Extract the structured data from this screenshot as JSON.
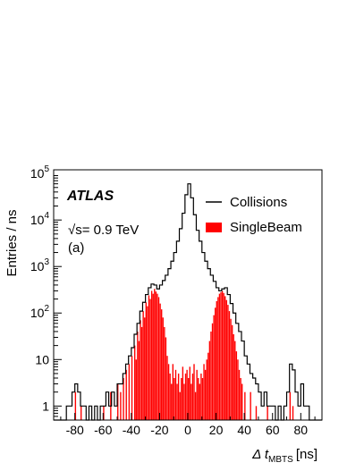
{
  "chart_data": {
    "type": "histogram",
    "title": "",
    "xlabel": "Δ t",
    "xlabel_subscript": "MBTS",
    "xlabel_unit": "[ns]",
    "ylabel": "Entries / ns",
    "xlim": [
      -95,
      95
    ],
    "ylim": [
      0.5,
      120000
    ],
    "yscale": "log",
    "grid": false,
    "legend_position": "top-right",
    "x_tick_labels": [
      "-80",
      "-60",
      "-40",
      "-20",
      "0",
      "20",
      "40",
      "60",
      "80"
    ],
    "y_tick_labels": [
      {
        "base": "1",
        "exp": ""
      },
      {
        "base": "10",
        "exp": ""
      },
      {
        "base": "10",
        "exp": "2"
      },
      {
        "base": "10",
        "exp": "3"
      },
      {
        "base": "10",
        "exp": "4"
      },
      {
        "base": "10",
        "exp": "5"
      }
    ],
    "experiment_label": "ATLAS",
    "energy_label": "√s= 0.9 TeV",
    "panel_label": "(a)",
    "series": [
      {
        "name": "Collisions",
        "style": "step-line",
        "color": "#000000",
        "points": [
          [
            -95,
            0
          ],
          [
            -92,
            0
          ],
          [
            -90,
            0
          ],
          [
            -88,
            0
          ],
          [
            -86,
            1
          ],
          [
            -84,
            1
          ],
          [
            -82,
            2
          ],
          [
            -80,
            3
          ],
          [
            -78,
            2
          ],
          [
            -76,
            1
          ],
          [
            -74,
            1
          ],
          [
            -72,
            0
          ],
          [
            -70,
            1
          ],
          [
            -68,
            0
          ],
          [
            -66,
            1
          ],
          [
            -64,
            0
          ],
          [
            -62,
            1
          ],
          [
            -60,
            1
          ],
          [
            -58,
            2
          ],
          [
            -56,
            1
          ],
          [
            -54,
            2
          ],
          [
            -52,
            1
          ],
          [
            -50,
            3
          ],
          [
            -48,
            3
          ],
          [
            -46,
            5
          ],
          [
            -44,
            8
          ],
          [
            -42,
            12
          ],
          [
            -40,
            18
          ],
          [
            -38,
            35
          ],
          [
            -36,
            60
          ],
          [
            -34,
            110
          ],
          [
            -32,
            170
          ],
          [
            -30,
            250
          ],
          [
            -28,
            350
          ],
          [
            -26,
            420
          ],
          [
            -24,
            400
          ],
          [
            -22,
            330
          ],
          [
            -20,
            400
          ],
          [
            -18,
            500
          ],
          [
            -16,
            650
          ],
          [
            -14,
            900
          ],
          [
            -12,
            1300
          ],
          [
            -10,
            2000
          ],
          [
            -8,
            3500
          ],
          [
            -6,
            6500
          ],
          [
            -4,
            14000
          ],
          [
            -2,
            35000
          ],
          [
            0,
            60000
          ],
          [
            2,
            30000
          ],
          [
            4,
            13000
          ],
          [
            6,
            6000
          ],
          [
            8,
            3500
          ],
          [
            10,
            2000
          ],
          [
            12,
            1300
          ],
          [
            14,
            900
          ],
          [
            16,
            650
          ],
          [
            18,
            480
          ],
          [
            20,
            350
          ],
          [
            22,
            300
          ],
          [
            24,
            330
          ],
          [
            26,
            350
          ],
          [
            28,
            250
          ],
          [
            30,
            160
          ],
          [
            32,
            100
          ],
          [
            34,
            60
          ],
          [
            36,
            40
          ],
          [
            38,
            25
          ],
          [
            40,
            12
          ],
          [
            42,
            8
          ],
          [
            44,
            5
          ],
          [
            46,
            4
          ],
          [
            48,
            3
          ],
          [
            50,
            2
          ],
          [
            52,
            1
          ],
          [
            54,
            2
          ],
          [
            56,
            1
          ],
          [
            58,
            1
          ],
          [
            60,
            1
          ],
          [
            62,
            0
          ],
          [
            64,
            1
          ],
          [
            66,
            0
          ],
          [
            68,
            1
          ],
          [
            70,
            2
          ],
          [
            72,
            8
          ],
          [
            74,
            6
          ],
          [
            76,
            2
          ],
          [
            78,
            1
          ],
          [
            80,
            3
          ],
          [
            82,
            1
          ],
          [
            84,
            1
          ],
          [
            86,
            0
          ],
          [
            88,
            0
          ],
          [
            90,
            0
          ],
          [
            92,
            0
          ],
          [
            94,
            0
          ]
        ]
      },
      {
        "name": "SingleBeam",
        "style": "filled-histogram",
        "color": "#ff0000",
        "points": [
          [
            -80,
            2
          ],
          [
            -76,
            1
          ],
          [
            -60,
            1
          ],
          [
            -55,
            2
          ],
          [
            -50,
            3
          ],
          [
            -48,
            2
          ],
          [
            -46,
            4
          ],
          [
            -44,
            6
          ],
          [
            -42,
            8
          ],
          [
            -40,
            12
          ],
          [
            -38,
            20
          ],
          [
            -37,
            10
          ],
          [
            -36,
            40
          ],
          [
            -35,
            25
          ],
          [
            -34,
            70
          ],
          [
            -33,
            50
          ],
          [
            -32,
            110
          ],
          [
            -31,
            80
          ],
          [
            -30,
            170
          ],
          [
            -29,
            140
          ],
          [
            -28,
            240
          ],
          [
            -27,
            200
          ],
          [
            -26,
            300
          ],
          [
            -25,
            260
          ],
          [
            -24,
            330
          ],
          [
            -23,
            290
          ],
          [
            -22,
            260
          ],
          [
            -21,
            220
          ],
          [
            -20,
            160
          ],
          [
            -19,
            120
          ],
          [
            -18,
            80
          ],
          [
            -17,
            50
          ],
          [
            -16,
            30
          ],
          [
            -15,
            12
          ],
          [
            -14,
            8
          ],
          [
            -13,
            5
          ],
          [
            -12,
            3
          ],
          [
            -11,
            8
          ],
          [
            -10,
            4
          ],
          [
            -9,
            6
          ],
          [
            -8,
            3
          ],
          [
            -7,
            5
          ],
          [
            -6,
            2
          ],
          [
            -5,
            4
          ],
          [
            -4,
            7
          ],
          [
            -3,
            3
          ],
          [
            -2,
            5
          ],
          [
            -1,
            6
          ],
          [
            0,
            4
          ],
          [
            1,
            7
          ],
          [
            2,
            3
          ],
          [
            3,
            5
          ],
          [
            4,
            8
          ],
          [
            5,
            2
          ],
          [
            6,
            6
          ],
          [
            7,
            4
          ],
          [
            8,
            3
          ],
          [
            9,
            5
          ],
          [
            10,
            4
          ],
          [
            11,
            8
          ],
          [
            12,
            6
          ],
          [
            13,
            10
          ],
          [
            14,
            14
          ],
          [
            15,
            25
          ],
          [
            16,
            40
          ],
          [
            17,
            60
          ],
          [
            18,
            90
          ],
          [
            19,
            130
          ],
          [
            20,
            180
          ],
          [
            21,
            220
          ],
          [
            22,
            260
          ],
          [
            23,
            280
          ],
          [
            24,
            300
          ],
          [
            25,
            270
          ],
          [
            26,
            230
          ],
          [
            27,
            190
          ],
          [
            28,
            150
          ],
          [
            29,
            110
          ],
          [
            30,
            75
          ],
          [
            31,
            55
          ],
          [
            32,
            35
          ],
          [
            33,
            25
          ],
          [
            34,
            15
          ],
          [
            35,
            10
          ],
          [
            36,
            6
          ],
          [
            37,
            4
          ],
          [
            38,
            3
          ],
          [
            40,
            2
          ],
          [
            44,
            2
          ],
          [
            48,
            1
          ],
          [
            56,
            1
          ],
          [
            72,
            2
          ],
          [
            74,
            1
          ]
        ]
      }
    ]
  }
}
